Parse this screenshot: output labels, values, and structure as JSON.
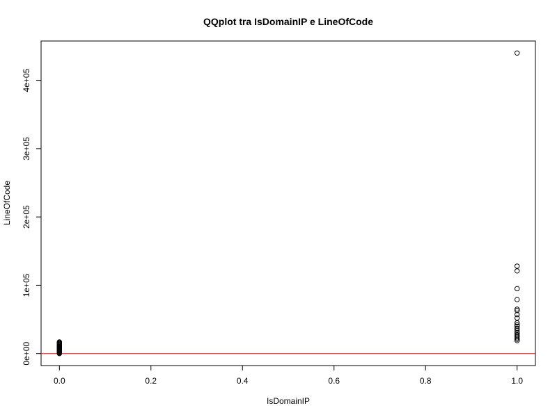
{
  "chart_data": {
    "type": "scatter",
    "title": "QQplot tra IsDomainIP e LineOfCode",
    "xlabel": "IsDomainIP",
    "ylabel": "LineOfCode",
    "xlim": [
      -0.04,
      1.04
    ],
    "ylim": [
      -17600,
      457600
    ],
    "x_ticks": [
      0.0,
      0.2,
      0.4,
      0.6,
      0.8,
      1.0
    ],
    "x_tick_labels": [
      "0.0",
      "0.2",
      "0.4",
      "0.6",
      "0.8",
      "1.0"
    ],
    "y_ticks": [
      0,
      100000,
      200000,
      300000,
      400000
    ],
    "y_tick_labels": [
      "0e+00",
      "1e+05",
      "2e+05",
      "3e+05",
      "4e+05"
    ],
    "grid": false,
    "series": [
      {
        "marker": "open-circle",
        "color": "#000000",
        "points": [
          [
            0,
            0
          ],
          [
            0,
            1000
          ],
          [
            0,
            2000
          ],
          [
            0,
            3000
          ],
          [
            0,
            4000
          ],
          [
            0,
            5000
          ],
          [
            0,
            6000
          ],
          [
            0,
            7000
          ],
          [
            0,
            8000
          ],
          [
            0,
            9000
          ],
          [
            0,
            10000
          ],
          [
            0,
            11000
          ],
          [
            0,
            12000
          ],
          [
            0,
            13000
          ],
          [
            0,
            14000
          ],
          [
            0,
            15000
          ],
          [
            0,
            16000
          ],
          [
            0,
            17000
          ],
          [
            1,
            440000
          ],
          [
            1,
            128000
          ],
          [
            1,
            121000
          ],
          [
            1,
            95000
          ],
          [
            1,
            79000
          ],
          [
            1,
            65000
          ],
          [
            1,
            63000
          ],
          [
            1,
            57000
          ],
          [
            1,
            52000
          ],
          [
            1,
            45000
          ],
          [
            1,
            42000
          ],
          [
            1,
            40000
          ],
          [
            1,
            37000
          ],
          [
            1,
            34000
          ],
          [
            1,
            31000
          ],
          [
            1,
            29000
          ],
          [
            1,
            27000
          ],
          [
            1,
            25000
          ],
          [
            1,
            23000
          ],
          [
            1,
            21000
          ],
          [
            1,
            19000
          ]
        ]
      }
    ],
    "reference_line": {
      "y": 0,
      "color": "#ff0000"
    }
  }
}
